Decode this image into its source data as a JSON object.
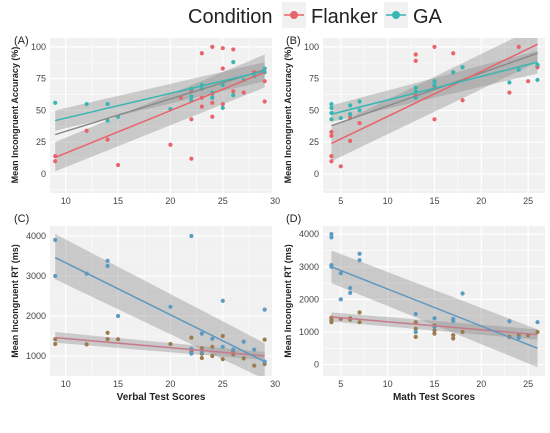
{
  "legend": {
    "title": "Condition",
    "items": [
      {
        "name": "Flanker",
        "color": "#E8646A"
      },
      {
        "name": "GA",
        "color": "#37B6B4"
      }
    ]
  },
  "colors": {
    "panel_bg": "#F1F1F1",
    "grid": "#FFFFFF",
    "ci_band": "#8E8E8E",
    "rt_flanker": "#9C7C4F",
    "rt_ga": "#5B9BC2",
    "rt_flanker_line": "#C77A8C",
    "rt_ga_line": "#5E97C0"
  },
  "chart_data": [
    {
      "type": "scatter",
      "panel": "(A)",
      "xlabel": "",
      "ylabel": "Mean Incongruent Accuracy (%)",
      "xlim": [
        8.5,
        29.7
      ],
      "ylim": [
        -15,
        107
      ],
      "xticks": [
        10,
        15,
        20,
        25,
        30
      ],
      "yticks": [
        0,
        25,
        50,
        75,
        100
      ],
      "series": [
        {
          "name": "Flanker",
          "points": [
            [
              9,
              10
            ],
            [
              9,
              14
            ],
            [
              12,
              34
            ],
            [
              14,
              27
            ],
            [
              15,
              7
            ],
            [
              20,
              23
            ],
            [
              21,
              60
            ],
            [
              22,
              12
            ],
            [
              22,
              65
            ],
            [
              23,
              53
            ],
            [
              23,
              60
            ],
            [
              23,
              95
            ],
            [
              24,
              100
            ],
            [
              24,
              63
            ],
            [
              24,
              56
            ],
            [
              25,
              83
            ],
            [
              25,
              55
            ],
            [
              25,
              99
            ],
            [
              26,
              98
            ],
            [
              26,
              65
            ],
            [
              27,
              64
            ],
            [
              28,
              80
            ],
            [
              29,
              57
            ],
            [
              29,
              73
            ],
            [
              22,
              43
            ],
            [
              24,
              45
            ]
          ],
          "fit": {
            "x": [
              9,
              29
            ],
            "y": [
              13,
              80
            ]
          },
          "ci_low": [
            2,
            68
          ],
          "ci_high": [
            25,
            94
          ]
        },
        {
          "name": "GA",
          "points": [
            [
              9,
              56
            ],
            [
              12,
              55
            ],
            [
              14,
              55
            ],
            [
              14,
              42
            ],
            [
              15,
              45
            ],
            [
              20,
              51
            ],
            [
              22,
              61
            ],
            [
              22,
              67
            ],
            [
              23,
              67
            ],
            [
              23,
              70
            ],
            [
              24,
              60
            ],
            [
              25,
              52
            ],
            [
              25,
              70
            ],
            [
              26,
              62
            ],
            [
              26,
              88
            ],
            [
              27,
              74
            ],
            [
              28,
              77
            ],
            [
              29,
              80
            ],
            [
              29,
              83
            ],
            [
              22,
              58
            ],
            [
              24,
              64
            ]
          ],
          "fit": {
            "x": [
              9,
              29
            ],
            "y": [
              42,
              81
            ]
          },
          "ci_low": [
            34,
            73
          ],
          "ci_high": [
            50,
            88
          ]
        }
      ],
      "overall_fit": {
        "x": [
          9,
          29
        ],
        "y": [
          31,
          82
        ]
      }
    },
    {
      "type": "scatter",
      "panel": "(B)",
      "xlabel": "",
      "ylabel": "Mean Incongruent Accuracy (%)",
      "xlim": [
        3.1,
        26.8
      ],
      "ylim": [
        -15,
        107
      ],
      "xticks": [
        5,
        10,
        15,
        20,
        25
      ],
      "yticks": [
        0,
        25,
        50,
        75,
        100
      ],
      "series": [
        {
          "name": "Flanker",
          "points": [
            [
              4,
              10
            ],
            [
              4,
              14
            ],
            [
              4,
              33
            ],
            [
              5,
              6
            ],
            [
              6,
              26
            ],
            [
              6,
              44
            ],
            [
              7,
              40
            ],
            [
              13,
              94
            ],
            [
              13,
              89
            ],
            [
              13,
              62
            ],
            [
              15,
              100
            ],
            [
              15,
              43
            ],
            [
              15,
              69
            ],
            [
              17,
              95
            ],
            [
              17,
              80
            ],
            [
              18,
              58
            ],
            [
              23,
              64
            ],
            [
              24,
              100
            ],
            [
              25,
              73
            ],
            [
              26,
              85
            ],
            [
              26,
              84
            ],
            [
              4,
              30
            ],
            [
              6,
              47
            ]
          ],
          "fit": {
            "x": [
              4,
              26
            ],
            "y": [
              24,
              102
            ]
          },
          "ci_low": [
            10,
            88
          ],
          "ci_high": [
            37,
            116
          ]
        },
        {
          "name": "GA",
          "points": [
            [
              4,
              48
            ],
            [
              4,
              55
            ],
            [
              4,
              52
            ],
            [
              5,
              44
            ],
            [
              6,
              54
            ],
            [
              6,
              47
            ],
            [
              7,
              50
            ],
            [
              13,
              68
            ],
            [
              13,
              65
            ],
            [
              13,
              60
            ],
            [
              15,
              73
            ],
            [
              15,
              70
            ],
            [
              17,
              80
            ],
            [
              18,
              84
            ],
            [
              23,
              72
            ],
            [
              24,
              82
            ],
            [
              26,
              74
            ],
            [
              26,
              86
            ],
            [
              4,
              43
            ],
            [
              7,
              57
            ]
          ],
          "fit": {
            "x": [
              4,
              26
            ],
            "y": [
              47,
              88
            ]
          },
          "ci_low": [
            41,
            79
          ],
          "ci_high": [
            54,
            97
          ]
        }
      ],
      "overall_fit": {
        "x": [
          4,
          26
        ],
        "y": [
          38,
          95
        ]
      }
    },
    {
      "type": "scatter",
      "panel": "(C)",
      "xlabel": "Verbal Test Scores",
      "ylabel": "Mean Incongruent RT (ms)",
      "xlim": [
        8.5,
        29.7
      ],
      "ylim": [
        500,
        4250
      ],
      "xticks": [
        10,
        15,
        20,
        25,
        30
      ],
      "yticks": [
        1000,
        2000,
        3000,
        4000
      ],
      "series": [
        {
          "name": "Flanker",
          "points": [
            [
              9,
              1300
            ],
            [
              9,
              1420
            ],
            [
              12,
              1290
            ],
            [
              14,
              1420
            ],
            [
              14,
              1580
            ],
            [
              15,
              1420
            ],
            [
              20,
              1300
            ],
            [
              22,
              1460
            ],
            [
              22,
              1110
            ],
            [
              23,
              1060
            ],
            [
              23,
              950
            ],
            [
              24,
              1230
            ],
            [
              24,
              1000
            ],
            [
              25,
              920
            ],
            [
              25,
              1500
            ],
            [
              26,
              1040
            ],
            [
              26,
              1120
            ],
            [
              27,
              940
            ],
            [
              28,
              760
            ],
            [
              29,
              1410
            ],
            [
              29,
              800
            ],
            [
              23,
              1190
            ]
          ],
          "fit": {
            "x": [
              9,
              29
            ],
            "y": [
              1460,
              1000
            ]
          },
          "ci_low": [
            1330,
            900
          ],
          "ci_high": [
            1600,
            1100
          ]
        },
        {
          "name": "GA",
          "points": [
            [
              9,
              3900
            ],
            [
              9,
              3000
            ],
            [
              12,
              3060
            ],
            [
              14,
              3380
            ],
            [
              14,
              3250
            ],
            [
              15,
              2000
            ],
            [
              20,
              2230
            ],
            [
              22,
              4000
            ],
            [
              22,
              1180
            ],
            [
              23,
              1560
            ],
            [
              23,
              1100
            ],
            [
              24,
              1430
            ],
            [
              25,
              2380
            ],
            [
              25,
              1230
            ],
            [
              26,
              1160
            ],
            [
              27,
              1360
            ],
            [
              28,
              1160
            ],
            [
              29,
              2160
            ],
            [
              29,
              860
            ],
            [
              22,
              1060
            ]
          ],
          "fit": {
            "x": [
              9,
              29
            ],
            "y": [
              3460,
              860
            ]
          },
          "ci_low": [
            2920,
            420
          ],
          "ci_high": [
            4050,
            1320
          ]
        }
      ]
    },
    {
      "type": "scatter",
      "panel": "(D)",
      "xlabel": "Math Test Scores",
      "ylabel": "Mean Incongruent RT (ms)",
      "xlim": [
        3.1,
        26.8
      ],
      "ylim": [
        -350,
        4250
      ],
      "xticks": [
        5,
        10,
        15,
        20,
        25
      ],
      "yticks": [
        0,
        1000,
        2000,
        3000,
        4000
      ],
      "series": [
        {
          "name": "Flanker",
          "points": [
            [
              4,
              1300
            ],
            [
              4,
              1440
            ],
            [
              4,
              1420
            ],
            [
              5,
              1400
            ],
            [
              6,
              1380
            ],
            [
              6,
              1420
            ],
            [
              7,
              1300
            ],
            [
              7,
              1600
            ],
            [
              13,
              1300
            ],
            [
              13,
              1100
            ],
            [
              13,
              850
            ],
            [
              15,
              1200
            ],
            [
              15,
              1050
            ],
            [
              15,
              950
            ],
            [
              17,
              900
            ],
            [
              17,
              800
            ],
            [
              18,
              1000
            ],
            [
              23,
              850
            ],
            [
              24,
              900
            ],
            [
              25,
              900
            ],
            [
              26,
              1000
            ],
            [
              4,
              1360
            ]
          ],
          "fit": {
            "x": [
              4,
              26
            ],
            "y": [
              1460,
              920
            ]
          },
          "ci_low": [
            1320,
            760
          ],
          "ci_high": [
            1600,
            1080
          ]
        },
        {
          "name": "GA",
          "points": [
            [
              4,
              4000
            ],
            [
              4,
              3900
            ],
            [
              4,
              3050
            ],
            [
              4,
              3000
            ],
            [
              5,
              2000
            ],
            [
              6,
              2200
            ],
            [
              6,
              2350
            ],
            [
              7,
              3400
            ],
            [
              7,
              3200
            ],
            [
              13,
              1550
            ],
            [
              13,
              1000
            ],
            [
              15,
              1420
            ],
            [
              15,
              1150
            ],
            [
              17,
              1340
            ],
            [
              18,
              2180
            ],
            [
              23,
              1330
            ],
            [
              24,
              820
            ],
            [
              26,
              1300
            ],
            [
              5,
              2800
            ],
            [
              17,
              1400
            ]
          ],
          "fit": {
            "x": [
              4,
              26
            ],
            "y": [
              3000,
              500
            ]
          },
          "ci_low": [
            2500,
            -80
          ],
          "ci_high": [
            3500,
            1080
          ]
        }
      ]
    }
  ]
}
